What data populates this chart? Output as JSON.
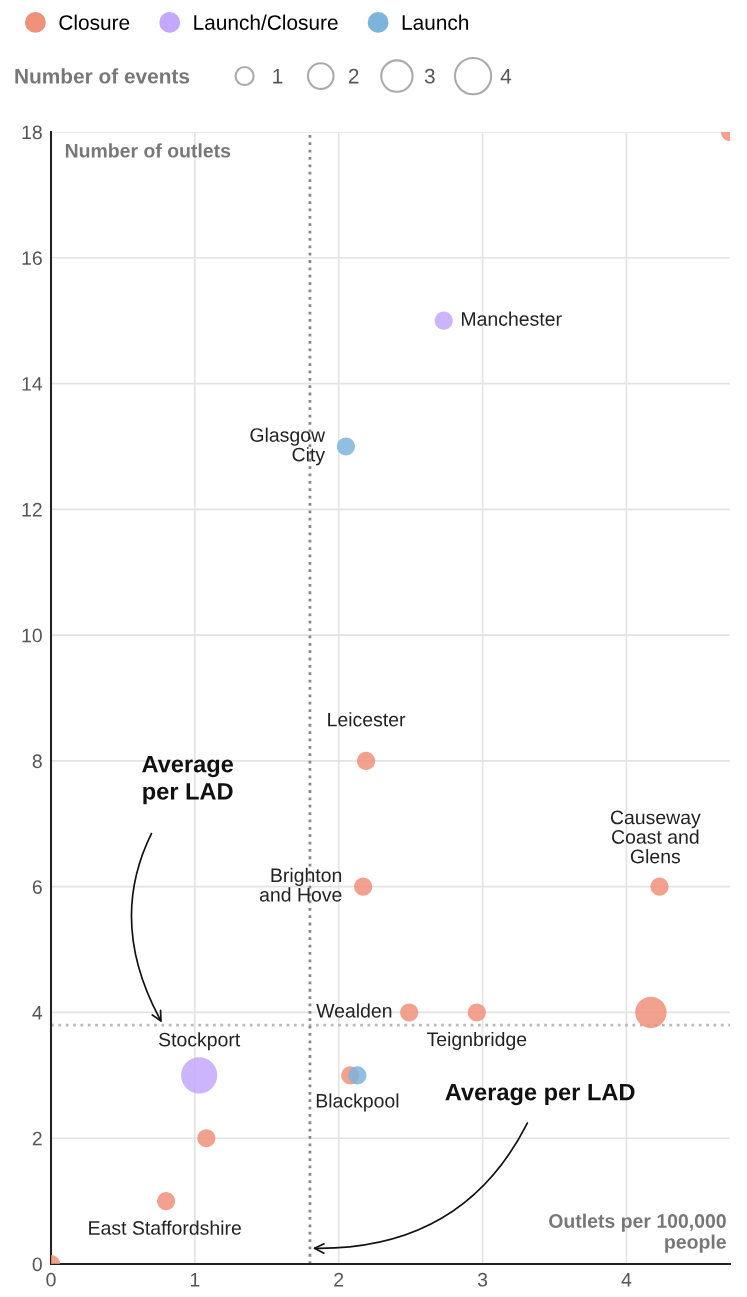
{
  "chart_data": {
    "type": "scatter",
    "xlabel": "Outlets per 100,000\npeople",
    "ylabel": "Number of outlets",
    "legend_title": "Number of events",
    "series": [
      {
        "name": "Closure",
        "color": "#f0917a",
        "x": [
          0,
          4.72,
          2.19,
          2.17,
          4.23,
          2.49,
          2.96,
          4.17,
          2.08,
          1.08,
          0.8
        ],
        "values": [
          0,
          18,
          8,
          6,
          6,
          4,
          4,
          4,
          3,
          2,
          1
        ],
        "sizes": [
          1,
          1,
          1,
          1,
          1,
          1,
          1,
          3,
          1,
          1,
          1
        ]
      },
      {
        "name": "Launch/Closure",
        "color": "#c3a8fc",
        "x": [
          2.73,
          1.03
        ],
        "values": [
          15,
          3
        ],
        "sizes": [
          1,
          4
        ]
      },
      {
        "name": "Launch",
        "color": "#7db4dc",
        "x": [
          2.05,
          2.13
        ],
        "values": [
          13,
          3
        ],
        "sizes": [
          1,
          1
        ]
      }
    ],
    "size_legend": [
      1,
      2,
      3,
      4
    ],
    "annotations": [
      {
        "text": "Manchester",
        "x": 2.73,
        "y": 15
      },
      {
        "text": "Glasgow\nCity",
        "x": 2.05,
        "y": 13
      },
      {
        "text": "Leicester",
        "x": 2.19,
        "y": 8
      },
      {
        "text": "Brighton\nand Hove",
        "x": 2.17,
        "y": 6
      },
      {
        "text": "Causeway\nCoast and\nGlens",
        "x": 4.23,
        "y": 6
      },
      {
        "text": "Wealden",
        "x": 2.49,
        "y": 4
      },
      {
        "text": "Teignbridge",
        "x": 2.96,
        "y": 4
      },
      {
        "text": "Stockport",
        "x": 1.03,
        "y": 3
      },
      {
        "text": "Blackpool",
        "x": 2.13,
        "y": 3
      },
      {
        "text": "East Staffordshire",
        "x": 0.8,
        "y": 1
      }
    ],
    "ref_lines": [
      {
        "axis": "y",
        "value": 3.8,
        "label": "Average\nper LAD",
        "color": "#bbbbbb",
        "line_style": "dotted"
      },
      {
        "axis": "x",
        "value": 1.8,
        "label": "Average per LAD",
        "color": "#888888",
        "line_style": "dotted"
      }
    ],
    "xlim": [
      0,
      4.72
    ],
    "ylim": [
      0,
      18
    ],
    "xticks": [
      0,
      1,
      2,
      3,
      4
    ],
    "yticks": [
      0,
      2,
      4,
      6,
      8,
      10,
      12,
      14,
      16,
      18
    ],
    "grid": true,
    "legend": "top left",
    "marker": "circle"
  }
}
